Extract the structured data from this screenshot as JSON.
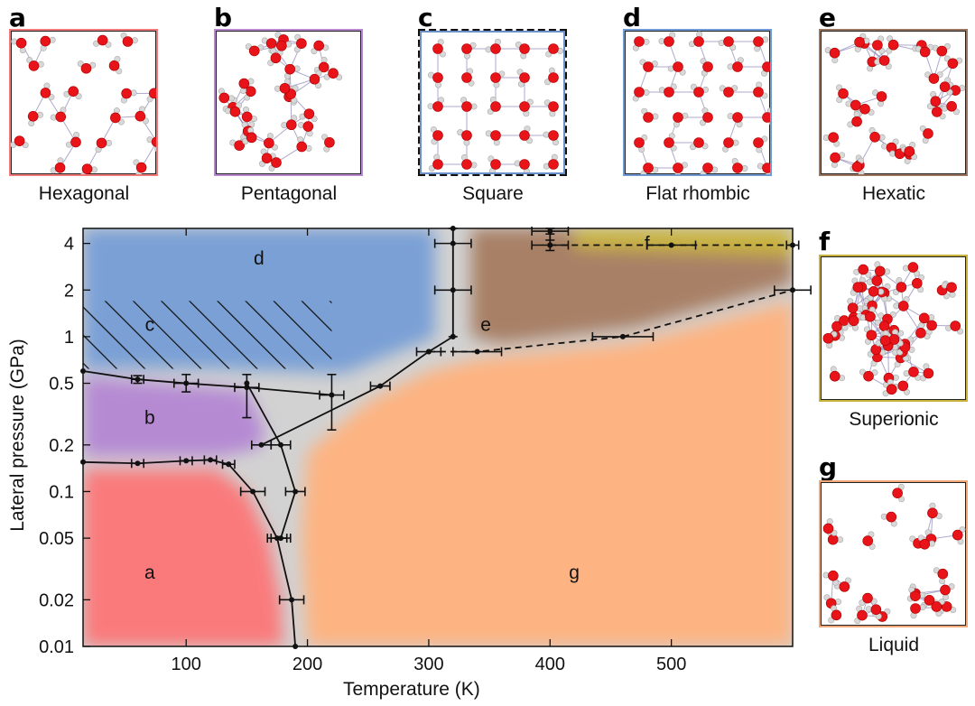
{
  "panels": [
    {
      "letter": "a",
      "caption": "Hexagonal",
      "color": "#f07a7a",
      "pattern": "hex"
    },
    {
      "letter": "b",
      "caption": "Pentagonal",
      "color": "#b788cf",
      "pattern": "pent"
    },
    {
      "letter": "c",
      "caption": "Square",
      "color": "#6b8fc9",
      "pattern": "square"
    },
    {
      "letter": "d",
      "caption": "Flat rhombic",
      "color": "#6f9ad6",
      "pattern": "rhombic"
    },
    {
      "letter": "e",
      "caption": "Hexatic",
      "color": "#9a7660",
      "pattern": "random"
    },
    {
      "letter": "f",
      "caption": "Superionic",
      "color": "#c8b23a",
      "pattern": "dense"
    },
    {
      "letter": "g",
      "caption": "Liquid",
      "color": "#f2a776",
      "pattern": "liquid"
    }
  ],
  "chart_data": {
    "type": "phase-diagram",
    "xlabel": "Temperature (K)",
    "ylabel": "Lateral pressure (GPa)",
    "xlim": [
      15,
      600
    ],
    "ylim": [
      0.01,
      5
    ],
    "yscale": "log",
    "xticks": [
      100,
      200,
      300,
      400,
      500
    ],
    "yticks": [
      {
        "value": 4,
        "label": "4"
      },
      {
        "value": 2,
        "label": "2"
      },
      {
        "value": 1,
        "label": "1"
      },
      {
        "value": 0.5,
        "label": "0.5"
      },
      {
        "value": 0.2,
        "label": "0.2"
      },
      {
        "value": 0.1,
        "label": "0.1"
      },
      {
        "value": 0.05,
        "label": "0.05"
      },
      {
        "value": 0.02,
        "label": "0.02"
      },
      {
        "value": 0.01,
        "label": "0.01"
      }
    ],
    "region_labels": [
      {
        "text": "a",
        "x": 70,
        "y": 0.03
      },
      {
        "text": "b",
        "x": 70,
        "y": 0.3
      },
      {
        "text": "c",
        "x": 70,
        "y": 1.2
      },
      {
        "text": "d",
        "x": 160,
        "y": 3.2
      },
      {
        "text": "e",
        "x": 347,
        "y": 1.2
      },
      {
        "text": "f",
        "x": 480,
        "y": 4.0
      },
      {
        "text": "g",
        "x": 420,
        "y": 0.03
      }
    ],
    "colors": {
      "hexagonal": "#fa7a7c",
      "pentagonal": "#b58ad3",
      "rhombic": "#7aa0d6",
      "hexatic": "#a88066",
      "superionic": "#c9b23c",
      "liquid": "#fdb482",
      "boundary": "#d2d2d2"
    },
    "series": [
      {
        "style": "solid",
        "points": [
          {
            "x": 15,
            "y": 0.155
          },
          {
            "x": 60,
            "y": 0.152,
            "xerr": 5
          },
          {
            "x": 100,
            "y": 0.158,
            "xerr": 5
          },
          {
            "x": 120,
            "y": 0.16,
            "xerr": 5
          },
          {
            "x": 135,
            "y": 0.15,
            "xerr": 5
          }
        ]
      },
      {
        "style": "solid",
        "points": [
          {
            "x": 15,
            "y": 0.6
          },
          {
            "x": 60,
            "y": 0.53,
            "xerr": 5
          },
          {
            "x": 100,
            "y": 0.5,
            "xerr": 10
          },
          {
            "x": 150,
            "y": 0.47,
            "xerr": 10
          },
          {
            "x": 220,
            "y": 0.42,
            "xerr": 10
          }
        ]
      },
      {
        "style": "solid",
        "points": [
          {
            "x": 135,
            "y": 0.15
          },
          {
            "x": 155,
            "y": 0.1,
            "xerr": 10
          },
          {
            "x": 175,
            "y": 0.05,
            "xerr": 8
          },
          {
            "x": 187,
            "y": 0.02,
            "xerr": 10
          },
          {
            "x": 190,
            "y": 0.01
          }
        ]
      },
      {
        "style": "solid",
        "points": [
          {
            "x": 150,
            "y": 0.5
          },
          {
            "x": 178,
            "y": 0.2,
            "xerr": 8
          },
          {
            "x": 190,
            "y": 0.1,
            "xerr": 8
          },
          {
            "x": 178,
            "y": 0.05,
            "xerr": 8
          }
        ]
      },
      {
        "style": "solid",
        "points": [
          {
            "x": 162,
            "y": 0.2,
            "xerr": 8
          },
          {
            "x": 260,
            "y": 0.48,
            "xerr": 8
          },
          {
            "x": 300,
            "y": 0.8,
            "xerr": 10
          },
          {
            "x": 320,
            "y": 1.0
          }
        ]
      },
      {
        "style": "solid",
        "points": [
          {
            "x": 320,
            "y": 1.0
          },
          {
            "x": 320,
            "y": 2.0,
            "xerr": 15
          },
          {
            "x": 320,
            "y": 4.0,
            "xerr": 15
          },
          {
            "x": 320,
            "y": 5.0
          }
        ]
      },
      {
        "style": "dashed",
        "points": [
          {
            "x": 300,
            "y": 0.8
          },
          {
            "x": 340,
            "y": 0.8,
            "xerr": 20
          },
          {
            "x": 460,
            "y": 1.0,
            "xerr": 25
          },
          {
            "x": 600,
            "y": 2.0,
            "xerr": 15
          }
        ]
      },
      {
        "style": "dashed",
        "points": [
          {
            "x": 400,
            "y": 3.9
          },
          {
            "x": 500,
            "y": 3.9,
            "xerr": 20
          },
          {
            "x": 600,
            "y": 3.9,
            "xerr": 5
          }
        ]
      },
      {
        "style": "solid",
        "points": [
          {
            "x": 400,
            "y": 4.8,
            "xerr": 15
          },
          {
            "x": 400,
            "y": 3.9,
            "xerr": 15
          }
        ]
      }
    ],
    "yerr_points": [
      {
        "x": 150,
        "y": 0.47,
        "lo": 0.3,
        "hi": 0.57
      },
      {
        "x": 220,
        "y": 0.42,
        "lo": 0.25,
        "hi": 0.57
      },
      {
        "x": 100,
        "y": 0.5,
        "lo": 0.44,
        "hi": 0.57
      },
      {
        "x": 60,
        "y": 0.53,
        "lo": 0.5,
        "hi": 0.56
      },
      {
        "x": 320,
        "y": 1.0,
        "lo": 1.0,
        "hi": 5.0
      },
      {
        "x": 400,
        "y": 3.9,
        "lo": 3.6,
        "hi": 4.2
      },
      {
        "x": 400,
        "y": 4.8,
        "lo": 4.6,
        "hi": 5.0
      }
    ]
  }
}
